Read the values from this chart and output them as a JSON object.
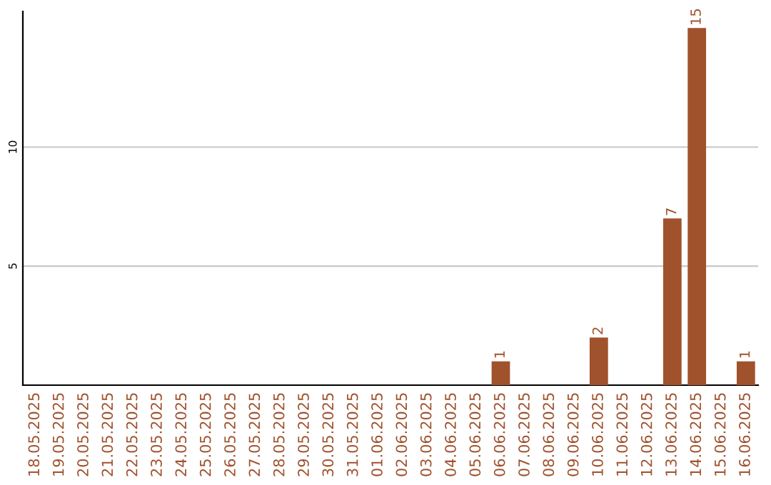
{
  "chart_data": {
    "type": "bar",
    "categories": [
      "18.05.2025",
      "19.05.2025",
      "20.05.2025",
      "21.05.2025",
      "22.05.2025",
      "23.05.2025",
      "24.05.2025",
      "25.05.2025",
      "26.05.2025",
      "27.05.2025",
      "28.05.2025",
      "29.05.2025",
      "30.05.2025",
      "31.05.2025",
      "01.06.2025",
      "02.06.2025",
      "03.06.2025",
      "04.06.2025",
      "05.06.2025",
      "06.06.2025",
      "07.06.2025",
      "08.06.2025",
      "09.06.2025",
      "10.06.2025",
      "11.06.2025",
      "12.06.2025",
      "13.06.2025",
      "14.06.2025",
      "15.06.2025",
      "16.06.2025"
    ],
    "values": [
      0,
      0,
      0,
      0,
      0,
      0,
      0,
      0,
      0,
      0,
      0,
      0,
      0,
      0,
      0,
      0,
      0,
      0,
      0,
      1,
      0,
      0,
      0,
      2,
      0,
      0,
      7,
      15,
      0,
      1
    ],
    "value_labels": [
      null,
      null,
      null,
      null,
      null,
      null,
      null,
      null,
      null,
      null,
      null,
      null,
      null,
      null,
      null,
      null,
      null,
      null,
      null,
      "1",
      null,
      null,
      null,
      "2",
      null,
      null,
      "7",
      "15",
      null,
      "1"
    ],
    "color": "#a0522d",
    "ylim": [
      0,
      15.7
    ],
    "yticks": [
      5,
      10
    ],
    "grid": "y"
  }
}
